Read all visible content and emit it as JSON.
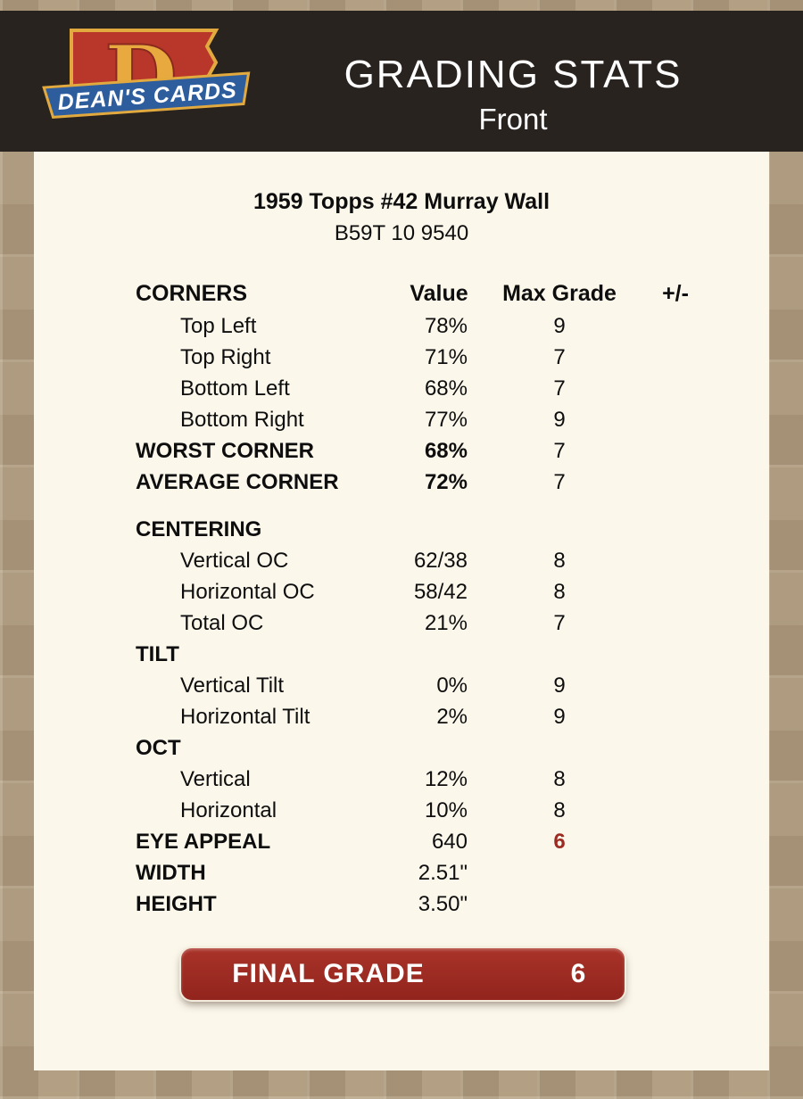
{
  "header": {
    "title": "GRADING STATS",
    "subtitle": "Front",
    "logo_text": "DEAN'S CARDS",
    "logo_letter": "D"
  },
  "card": {
    "title": "1959 Topps #42 Murray Wall",
    "code": "B59T 10 9540"
  },
  "table": {
    "headers": {
      "section": "CORNERS",
      "value": "Value",
      "max": "Max Grade",
      "pm": "+/-"
    },
    "rows": [
      {
        "label": "Top Left",
        "value": "78%",
        "max": "9",
        "pm": "",
        "indent": true
      },
      {
        "label": "Top Right",
        "value": "71%",
        "max": "7",
        "pm": "",
        "indent": true
      },
      {
        "label": "Bottom Left",
        "value": "68%",
        "max": "7",
        "pm": "",
        "indent": true
      },
      {
        "label": "Bottom Right",
        "value": "77%",
        "max": "9",
        "pm": "",
        "indent": true
      },
      {
        "label": "WORST CORNER",
        "value": "68%",
        "max": "7",
        "pm": "",
        "bold_label": true,
        "bold_value": true
      },
      {
        "label": "AVERAGE CORNER",
        "value": "72%",
        "max": "7",
        "pm": "",
        "bold_label": true,
        "bold_value": true
      },
      {
        "label": "CENTERING",
        "value": "",
        "max": "",
        "pm": "",
        "bold_label": true,
        "gap_before": true
      },
      {
        "label": "Vertical OC",
        "value": "62/38",
        "max": "8",
        "pm": "",
        "indent": true
      },
      {
        "label": "Horizontal OC",
        "value": "58/42",
        "max": "8",
        "pm": "",
        "indent": true
      },
      {
        "label": "Total OC",
        "value": "21%",
        "max": "7",
        "pm": "",
        "indent": true
      },
      {
        "label": "TILT",
        "value": "",
        "max": "",
        "pm": "",
        "bold_label": true
      },
      {
        "label": "Vertical Tilt",
        "value": "0%",
        "max": "9",
        "pm": "",
        "indent": true
      },
      {
        "label": "Horizontal Tilt",
        "value": "2%",
        "max": "9",
        "pm": "",
        "indent": true
      },
      {
        "label": "OCT",
        "value": "",
        "max": "",
        "pm": "",
        "bold_label": true
      },
      {
        "label": "Vertical",
        "value": "12%",
        "max": "8",
        "pm": "",
        "indent": true
      },
      {
        "label": "Horizontal",
        "value": "10%",
        "max": "8",
        "pm": "",
        "indent": true
      },
      {
        "label": "EYE APPEAL",
        "value": "640",
        "max": "6",
        "pm": "",
        "bold_label": true,
        "red_max": true
      },
      {
        "label": "WIDTH",
        "value": "2.51\"",
        "max": "",
        "pm": "",
        "bold_label": true
      },
      {
        "label": "HEIGHT",
        "value": "3.50\"",
        "max": "",
        "pm": "",
        "bold_label": true
      }
    ]
  },
  "final_grade": {
    "label": "FINAL GRADE",
    "value": "6"
  },
  "colors": {
    "accent_red": "#9c2b22",
    "header_bg": "#292320",
    "page_bg": "#b19e82",
    "panel_bg": "#fbf7eb",
    "logo_red": "#b8372a",
    "logo_blue": "#2e5d9e",
    "logo_gold": "#e2a93e"
  }
}
